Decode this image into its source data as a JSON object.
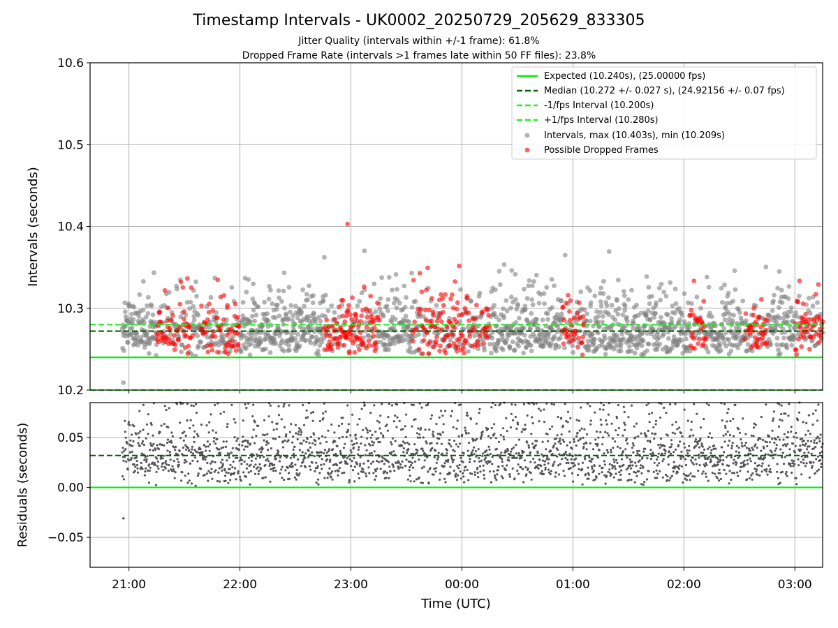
{
  "chart_data": {
    "type": "scatter",
    "title": "Timestamp Intervals - UK0002_20250729_205629_833305",
    "subtitle_1": "Jitter Quality (intervals within +/-1 frame): 61.8%",
    "subtitle_2": "Dropped Frame Rate (intervals >1 frames late within 50 FF files): 23.8%",
    "xlabel": "Time (UTC)",
    "x_ticks": [
      "21:00",
      "22:00",
      "23:00",
      "00:00",
      "01:00",
      "02:00",
      "03:00"
    ],
    "x_range_hours": [
      20.65,
      27.25
    ],
    "data_time_range_hours": [
      20.94,
      27.25
    ],
    "grid": true,
    "top_panel": {
      "ylabel": "Intervals (seconds)",
      "ylim": [
        10.2,
        10.6
      ],
      "y_ticks": [
        "10.2",
        "10.3",
        "10.4",
        "10.5",
        "10.6"
      ],
      "lines": [
        {
          "name": "Expected (10.240s), (25.00000 fps)",
          "y": 10.24,
          "color": "#00ee00",
          "style": "solid"
        },
        {
          "name": "Median (10.272 +/- 0.027 s), (24.92156 +/- 0.07 fps)",
          "y": 10.272,
          "color": "#006400",
          "style": "dashed"
        },
        {
          "name": "-1/fps Interval (10.200s)",
          "y": 10.2,
          "color": "#22ee22",
          "style": "dashed"
        },
        {
          "name": "+1/fps Interval (10.280s)",
          "y": 10.28,
          "color": "#22ee22",
          "style": "dashed"
        }
      ],
      "scatter": [
        {
          "name": "Intervals, max (10.403s), min (10.209s)",
          "color": "#808080",
          "max": 10.403,
          "min": 10.209
        },
        {
          "name": "Possible Dropped Frames",
          "color": "#ff0000"
        }
      ],
      "legend_position": "upper right",
      "dropped_frame_clusters_hours": [
        [
          21.25,
          21.58
        ],
        [
          21.65,
          22.0
        ],
        [
          22.75,
          23.05
        ],
        [
          22.9,
          23.25
        ],
        [
          23.55,
          24.25
        ],
        [
          24.9,
          25.1
        ],
        [
          26.05,
          26.2
        ],
        [
          26.55,
          26.75
        ],
        [
          27.0,
          27.25
        ]
      ]
    },
    "bottom_panel": {
      "ylabel": "Residuals (seconds)",
      "ylim": [
        -0.08,
        0.085
      ],
      "y_ticks": [
        "−0.05",
        "0.00",
        "0.05"
      ],
      "lines": [
        {
          "y": 0.0,
          "color": "#00ee00",
          "style": "solid"
        },
        {
          "y": 0.032,
          "color": "#006400",
          "style": "dashed"
        }
      ],
      "point_color": "#555555",
      "min_residual": -0.031
    }
  }
}
